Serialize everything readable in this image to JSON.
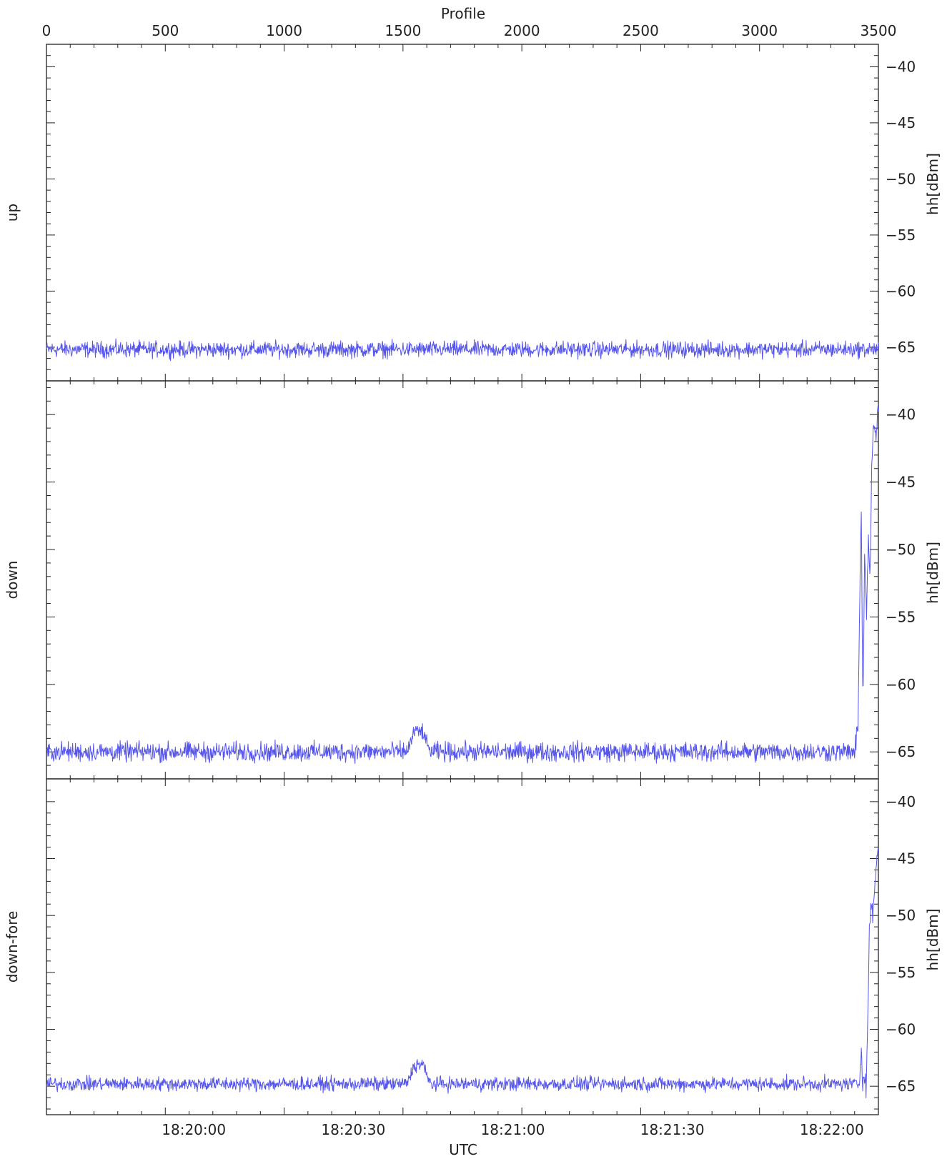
{
  "chart_data": {
    "type": "line",
    "top_axis": {
      "label": "Profile",
      "range": [
        0,
        3500
      ],
      "ticks": [
        "0",
        "500",
        "1000",
        "1500",
        "2000",
        "2500",
        "3000",
        "3500"
      ]
    },
    "bottom_axis": {
      "label": "UTC",
      "ticks": [
        "18:20:00",
        "18:20:30",
        "18:21:00",
        "18:21:30",
        "18:22:00"
      ],
      "tick_profiles": [
        620,
        1291,
        1962,
        2633,
        3304
      ]
    },
    "panels": [
      {
        "label": "up",
        "ylabel": "hh[dBm]",
        "ylim": [
          -68,
          -38
        ],
        "yticks": [
          "−40",
          "−45",
          "−50",
          "−55",
          "−60",
          "−65"
        ],
        "series": [
          {
            "color": "#5555ee",
            "baseline": -65.2,
            "noise": 0.7,
            "events": []
          }
        ]
      },
      {
        "label": "down",
        "ylabel": "hh[dBm]",
        "ylim": [
          -67,
          -37.5
        ],
        "yticks": [
          "−40",
          "−45",
          "−50",
          "−55",
          "−60",
          "−65"
        ],
        "series": [
          {
            "color": "#5555ee",
            "baseline": -65.0,
            "noise": 0.7,
            "events": [
              {
                "x": [
                  1510,
                  1530,
                  1545,
                  1585,
                  1600,
                  1620
                ],
                "y": [
                  -65.0,
                  -64.5,
                  -63.5,
                  -63.5,
                  -64.5,
                  -65.0
                ],
                "noise": 0.6
              },
              {
                "x": [
                  3400,
                  3415,
                  3422,
                  3428,
                  3435,
                  3442,
                  3450,
                  3458,
                  3465,
                  3472,
                  3480,
                  3490,
                  3500
                ],
                "y": [
                  -65.0,
                  -63.0,
                  -53.0,
                  -47.0,
                  -62.0,
                  -50.0,
                  -55.0,
                  -49.0,
                  -52.0,
                  -44.0,
                  -41.0,
                  -41.5,
                  -39.5
                ],
                "noise": 0.8
              }
            ]
          }
        ]
      },
      {
        "label": "down-fore",
        "ylabel": "hh[dBm]",
        "ylim": [
          -67.5,
          -38
        ],
        "yticks": [
          "−40",
          "−45",
          "−50",
          "−55",
          "−60",
          "−65"
        ],
        "series": [
          {
            "color": "#5555ee",
            "baseline": -64.8,
            "noise": 0.6,
            "events": [
              {
                "x": [
                  1510,
                  1530,
                  1545,
                  1585,
                  1600,
                  1620
                ],
                "y": [
                  -64.8,
                  -64.2,
                  -63.2,
                  -63.0,
                  -64.2,
                  -64.8
                ],
                "noise": 0.6
              },
              {
                "x": [
                  3420,
                  3428,
                  3433,
                  3440,
                  3448,
                  3455,
                  3462,
                  3470,
                  3478,
                  3486,
                  3494,
                  3500
                ],
                "y": [
                  -64.8,
                  -61.5,
                  -64.8,
                  -63.5,
                  -65.0,
                  -60.0,
                  -51.0,
                  -49.0,
                  -50.0,
                  -47.0,
                  -45.0,
                  -44.0
                ],
                "noise": 0.8
              }
            ]
          }
        ]
      }
    ]
  }
}
